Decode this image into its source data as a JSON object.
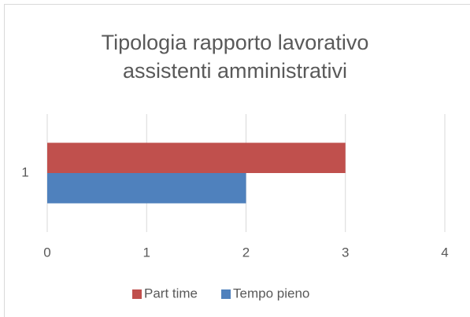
{
  "chart_data": {
    "type": "hbar",
    "title": "Tipologia rapporto lavorativo assistenti amministrativi",
    "categories": [
      "1"
    ],
    "series": [
      {
        "name": "Part time",
        "color": "#c0504d",
        "values": [
          3
        ]
      },
      {
        "name": "Tempo pieno",
        "color": "#4f81bd",
        "values": [
          2
        ]
      }
    ],
    "xlim": [
      0,
      4
    ],
    "xticks": [
      0,
      1,
      2,
      3,
      4
    ],
    "grid": true,
    "legend": "bottom"
  }
}
